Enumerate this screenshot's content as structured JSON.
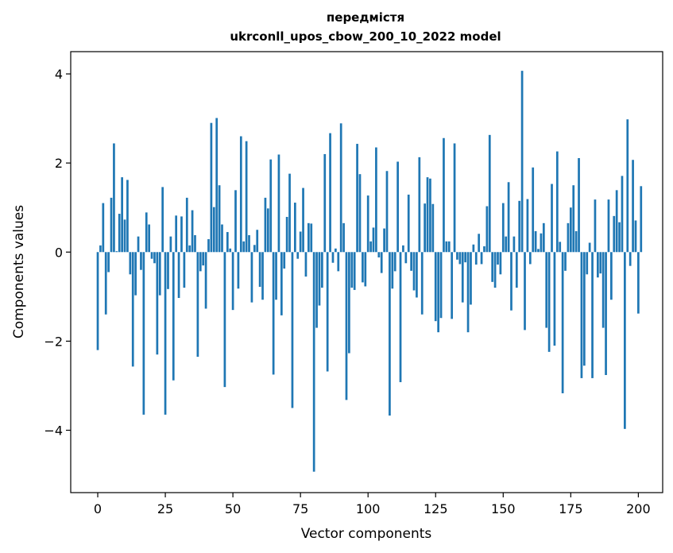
{
  "chart_data": {
    "type": "bar",
    "title": "передмістя",
    "subtitle": "ukrconll_upos_cbow_200_10_2022 model",
    "xlabel": "Vector components",
    "ylabel": "Components values",
    "xlim": [
      -10,
      209
    ],
    "ylim": [
      -5.4,
      4.5
    ],
    "xticks": [
      0,
      25,
      50,
      75,
      100,
      125,
      150,
      175,
      200
    ],
    "yticks": [
      4,
      2,
      0,
      -2,
      -4
    ],
    "grid": false,
    "bar_color": "#1f77b4",
    "values": [
      -2.2,
      0.15,
      1.1,
      -1.4,
      -0.45,
      1.22,
      2.44,
      0.02,
      0.86,
      1.68,
      0.73,
      1.62,
      -0.5,
      -2.57,
      -0.97,
      0.35,
      -0.4,
      -3.65,
      0.89,
      0.62,
      -0.15,
      -0.25,
      -2.3,
      -0.97,
      1.46,
      -3.65,
      -0.83,
      0.35,
      -2.88,
      0.82,
      -1.03,
      0.8,
      -0.8,
      1.22,
      0.15,
      0.94,
      0.38,
      -2.35,
      -0.43,
      -0.3,
      -1.27,
      0.29,
      2.9,
      1.01,
      3.01,
      1.5,
      0.62,
      -3.03,
      0.45,
      0.08,
      -1.3,
      1.39,
      -0.82,
      2.6,
      0.24,
      2.49,
      0.38,
      -1.13,
      0.16,
      0.5,
      -0.78,
      -1.07,
      1.22,
      0.98,
      2.08,
      -2.75,
      -1.07,
      2.19,
      -1.42,
      -0.37,
      0.79,
      1.76,
      -3.5,
      1.11,
      -0.15,
      0.46,
      1.44,
      -0.55,
      0.65,
      0.64,
      -4.93,
      -1.7,
      -1.2,
      -0.8,
      2.2,
      -2.68,
      2.67,
      -0.24,
      0.08,
      -0.43,
      2.89,
      0.65,
      -3.32,
      -2.27,
      -0.8,
      -0.85,
      2.43,
      1.75,
      -0.68,
      -0.77,
      1.27,
      0.24,
      0.55,
      2.35,
      -0.12,
      -0.47,
      0.53,
      1.82,
      -3.67,
      -0.82,
      -0.43,
      2.03,
      -2.92,
      0.15,
      -0.25,
      1.29,
      -0.42,
      -0.86,
      -1.02,
      2.13,
      -1.4,
      1.09,
      1.68,
      1.65,
      1.08,
      -1.55,
      -1.8,
      -1.48,
      2.56,
      0.24,
      0.24,
      -1.5,
      2.44,
      -0.17,
      -0.27,
      -1.13,
      -0.23,
      -1.8,
      -1.18,
      0.17,
      -0.28,
      0.41,
      -0.27,
      0.13,
      1.03,
      2.63,
      -0.67,
      -0.8,
      -0.28,
      -0.5,
      1.1,
      0.35,
      1.57,
      -1.31,
      0.35,
      -0.8,
      1.15,
      4.07,
      -1.75,
      1.19,
      -0.27,
      1.9,
      0.47,
      0.07,
      0.42,
      0.65,
      -1.7,
      -2.24,
      1.53,
      -2.1,
      2.26,
      0.23,
      -3.17,
      -0.42,
      0.65,
      1.0,
      1.5,
      0.47,
      2.11,
      -2.83,
      -2.55,
      -0.5,
      0.21,
      -2.83,
      1.18,
      -0.57,
      -0.48,
      -1.7,
      -2.76,
      1.18,
      -1.07,
      0.81,
      1.39,
      0.67,
      1.71,
      -3.97,
      2.98,
      -0.31,
      2.07,
      0.71,
      -1.38,
      1.48
    ]
  }
}
